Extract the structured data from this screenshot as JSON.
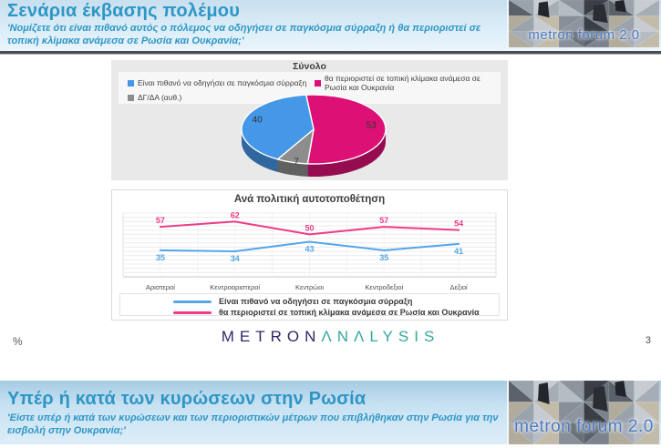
{
  "slide1": {
    "title": "Σενάρια έκβασης πολέμου",
    "subtitle": "'Νομίζετε ότι είναι πιθανό αυτός ο πόλεμος να οδηγήσει σε παγκόσμια σύρραξη ή θα περιοριστεί σε τοπική κλίμακα ανάμεσα σε Ρωσία και Ουκρανία;'",
    "brand_text": "metron forum 2.0",
    "footer": {
      "percent_note": "%",
      "logo_part1": "METRON",
      "logo_part2": "ΛNΛLYSIS",
      "page_number": "3"
    }
  },
  "slide2": {
    "title": "Υπέρ ή κατά των κυρώσεων στην Ρωσία",
    "subtitle": "'Είστε υπέρ ή κατά των κυρώσεων και των περιοριστικών μέτρων που επιβλήθηκαν στην Ρωσία για την εισβολή στην Ουκρανία;'",
    "brand_text": "metron forum 2.0"
  },
  "chart_data": [
    {
      "type": "pie",
      "title": "Σύνολο",
      "unit": "%",
      "series": [
        {
          "label": "Είναι πιθανό να οδηγήσει σε παγκόσμια σύρραξη",
          "value": 40,
          "color": "#4597e8"
        },
        {
          "label": "θα περιοριστεί σε τοπική κλίμακα ανάμεσα σε Ρωσία και Ουκρανία",
          "value": 53,
          "color": "#dd1175"
        },
        {
          "label": "ΔΓ/ΔΑ (αυθ.)",
          "value": 7,
          "color": "#8d8d8d"
        }
      ],
      "clockwise_from_top_order": [
        1,
        2,
        0
      ],
      "start_angle_deg": -6,
      "style": "3d",
      "legend_position": "top"
    },
    {
      "type": "line",
      "title": "Ανά πολιτική αυτοτοποθέτηση",
      "unit": "%",
      "categories": [
        "Αριστεροί",
        "Κεντροαριστεροί",
        "Κεντρώοι",
        "Κεντροδεξιοί",
        "Δεξιοί"
      ],
      "series": [
        {
          "name": "Είναι πιθανό να οδηγήσει σε παγκόσμια σύρραξη",
          "values": [
            35,
            34,
            43,
            35,
            41
          ],
          "color": "#55a5ea",
          "label_side": "below"
        },
        {
          "name": "θα περιοριστεί σε τοπική κλίμακα ανάμεσα σε Ρωσία και Ουκρανία",
          "values": [
            57,
            62,
            50,
            57,
            54
          ],
          "color": "#ee3c87",
          "label_side": "above"
        }
      ],
      "ylim": [
        10,
        70
      ],
      "grid": true,
      "legend_position": "bottom"
    }
  ]
}
